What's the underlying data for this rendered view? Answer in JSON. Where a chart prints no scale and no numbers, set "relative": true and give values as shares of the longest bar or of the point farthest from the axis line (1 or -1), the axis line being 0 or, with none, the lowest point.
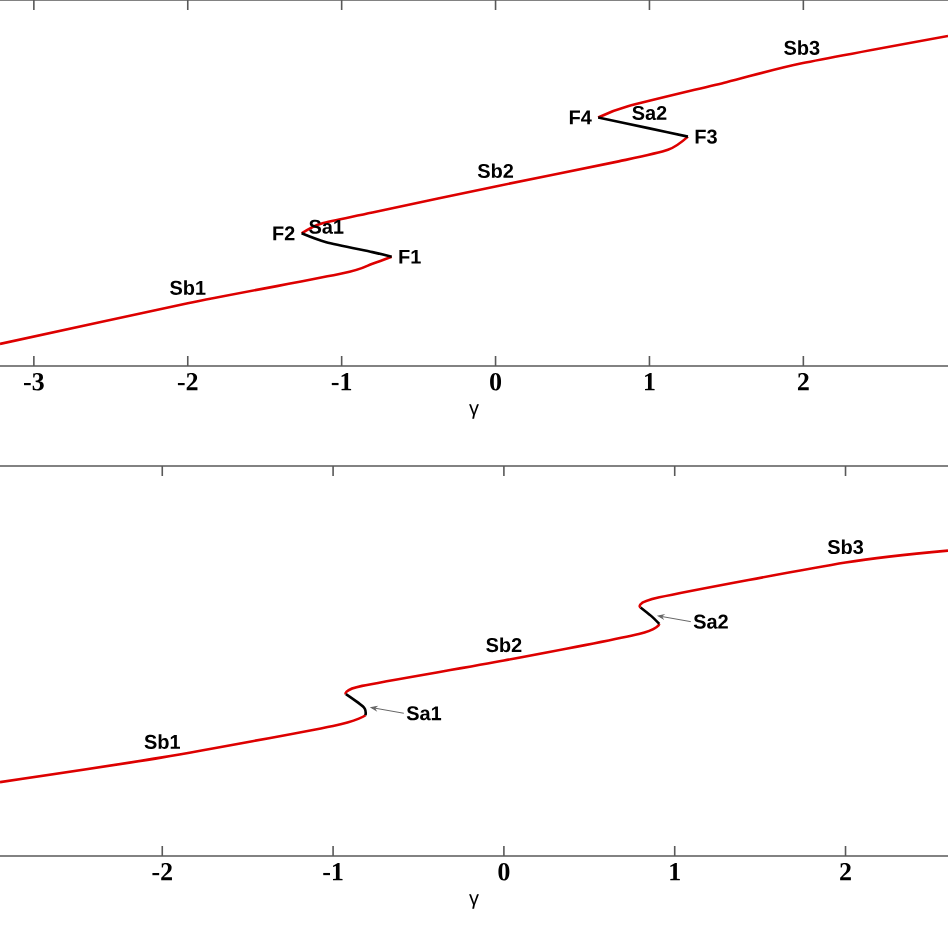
{
  "chart_data": [
    {
      "type": "line",
      "relative": true,
      "xlabel": "γ",
      "xlim": [
        -3.22,
        2.94
      ],
      "xticks": [
        -3,
        -2,
        -1,
        0,
        1,
        2
      ],
      "series": [
        {
          "name": "Sb1",
          "color": "#dd0000",
          "x": [
            -3.22,
            -2,
            -1,
            -0.8,
            -0.675
          ],
          "values": [
            0.067,
            0.19,
            0.28,
            0.31,
            0.331
          ]
        },
        {
          "name": "Sa1",
          "color": "#000000",
          "x": [
            -0.675,
            -0.8,
            -1.1,
            -1.26
          ],
          "values": [
            0.331,
            0.345,
            0.375,
            0.402
          ]
        },
        {
          "name": "Sb2",
          "color": "#dd0000",
          "x": [
            -1.26,
            -1.13,
            -0.8,
            0,
            0.8,
            1.12,
            1.25
          ],
          "values": [
            0.402,
            0.432,
            0.465,
            0.544,
            0.62,
            0.655,
            0.695
          ]
        },
        {
          "name": "Sa2",
          "color": "#000000",
          "x": [
            1.25,
            1.0,
            0.667
          ],
          "values": [
            0.695,
            0.72,
            0.753
          ]
        },
        {
          "name": "Sb3",
          "color": "#dd0000",
          "x": [
            0.667,
            0.86,
            1.5,
            1.99,
            2.94
          ],
          "values": [
            0.753,
            0.787,
            0.86,
            0.917,
            1.0
          ]
        }
      ],
      "annotations": [
        {
          "text": "F2",
          "x": -1.26,
          "y": 0.402
        },
        {
          "text": "F1",
          "x": -0.675,
          "y": 0.331
        },
        {
          "text": "F4",
          "x": 0.667,
          "y": 0.753
        },
        {
          "text": "F3",
          "x": 1.25,
          "y": 0.695
        }
      ]
    },
    {
      "type": "line",
      "relative": true,
      "xlabel": "γ",
      "xlim": [
        -2.95,
        2.6
      ],
      "xticks": [
        -2,
        -1,
        0,
        1,
        2
      ],
      "series": [
        {
          "name": "Sb1",
          "color": "#dd0000",
          "x": [
            -2.95,
            -2,
            -1,
            -0.81
          ],
          "values": [
            0.242,
            0.323,
            0.426,
            0.461
          ]
        },
        {
          "name": "Sa1",
          "color": "#000000",
          "x": [
            -0.81,
            -0.82,
            -0.925
          ],
          "values": [
            0.461,
            0.487,
            0.53
          ]
        },
        {
          "name": "Sb2",
          "color": "#dd0000",
          "x": [
            -0.925,
            -0.83,
            0,
            0.79,
            0.91
          ],
          "values": [
            0.53,
            0.557,
            0.64,
            0.727,
            0.76
          ]
        },
        {
          "name": "Sa2",
          "color": "#000000",
          "x": [
            0.91,
            0.86,
            0.8
          ],
          "values": [
            0.76,
            0.787,
            0.814
          ]
        },
        {
          "name": "Sb3",
          "color": "#dd0000",
          "x": [
            0.8,
            0.91,
            2,
            2.6
          ],
          "values": [
            0.814,
            0.847,
            0.961,
            1.0
          ]
        }
      ]
    }
  ]
}
